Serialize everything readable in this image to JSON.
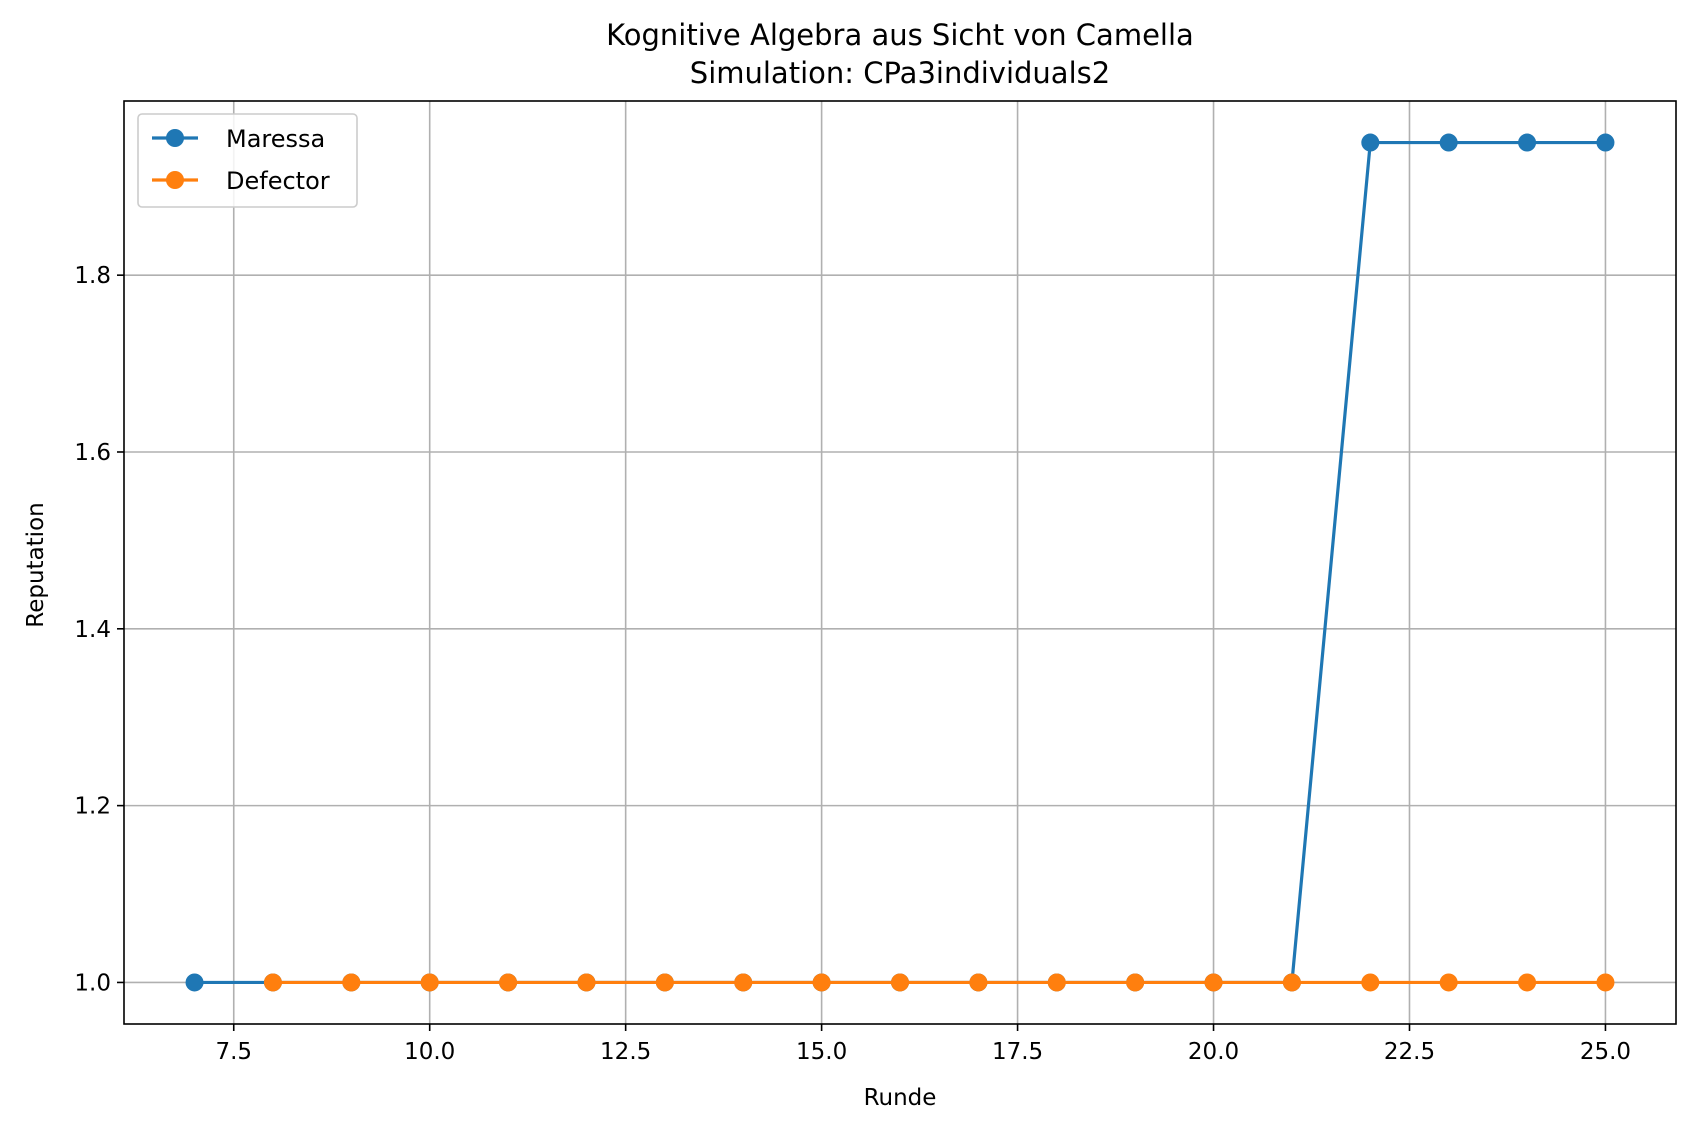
{
  "chart_data": {
    "type": "line",
    "title": "Kognitive Algebra aus Sicht von Camella",
    "subtitle": "Simulation: CPa3individuals2",
    "xlabel": "Runde",
    "ylabel": "Reputation",
    "xlim": [
      6.1,
      25.9
    ],
    "ylim": [
      0.953,
      1.997
    ],
    "x_ticks": [
      7.5,
      10.0,
      12.5,
      15.0,
      17.5,
      20.0,
      22.5,
      25.0
    ],
    "x_tick_labels": [
      "7.5",
      "10.0",
      "12.5",
      "15.0",
      "17.5",
      "20.0",
      "22.5",
      "25.0"
    ],
    "y_ticks": [
      1.0,
      1.2,
      1.4,
      1.6,
      1.8
    ],
    "y_tick_labels": [
      "1.0",
      "1.2",
      "1.4",
      "1.6",
      "1.8"
    ],
    "grid": true,
    "legend_position": "top-left",
    "series": [
      {
        "name": "Maressa",
        "color": "#1f77b4",
        "marker": "circle",
        "x": [
          7,
          8,
          9,
          10,
          11,
          12,
          13,
          14,
          15,
          16,
          17,
          18,
          19,
          20,
          21,
          22,
          23,
          24,
          25
        ],
        "y": [
          1.0,
          1.0,
          1.0,
          1.0,
          1.0,
          1.0,
          1.0,
          1.0,
          1.0,
          1.0,
          1.0,
          1.0,
          1.0,
          1.0,
          1.0,
          1.95,
          1.95,
          1.95,
          1.95
        ]
      },
      {
        "name": "Defector",
        "color": "#ff7f0e",
        "marker": "circle",
        "x": [
          8,
          9,
          10,
          11,
          12,
          13,
          14,
          15,
          16,
          17,
          18,
          19,
          20,
          21,
          22,
          23,
          24,
          25
        ],
        "y": [
          1.0,
          1.0,
          1.0,
          1.0,
          1.0,
          1.0,
          1.0,
          1.0,
          1.0,
          1.0,
          1.0,
          1.0,
          1.0,
          1.0,
          1.0,
          1.0,
          1.0,
          1.0
        ]
      }
    ]
  }
}
